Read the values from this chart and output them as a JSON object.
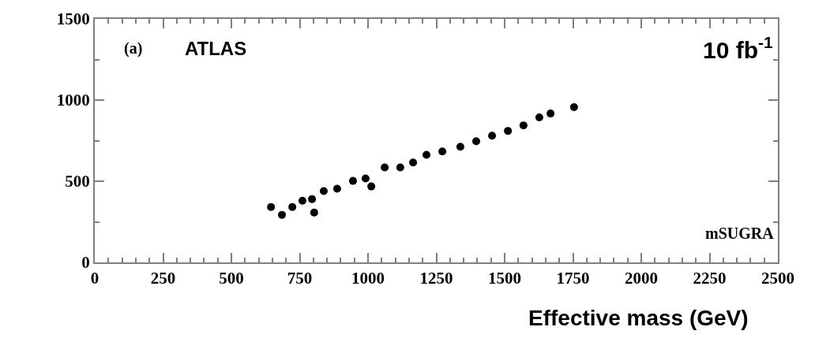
{
  "chart_data": {
    "type": "scatter",
    "xlabel": "Effective mass (GeV)",
    "annotations": [
      "(a)",
      "ATLAS",
      "10 fb$^{-1}$",
      "mSUGRA"
    ],
    "x": [
      645,
      685,
      723,
      760,
      795,
      803,
      838,
      887,
      945,
      991,
      1012,
      1061,
      1118,
      1165,
      1214,
      1272,
      1338,
      1396,
      1454,
      1512,
      1569,
      1627,
      1668,
      1754
    ],
    "series": [
      {
        "color": "#000000",
        "values": [
          341,
          293,
          341,
          380,
          390,
          307,
          439,
          454,
          502,
          517,
          468,
          585,
          585,
          615,
          663,
          683,
          712,
          746,
          780,
          810,
          844,
          893,
          917,
          956
        ]
      }
    ],
    "xlim": [
      0,
      2500
    ],
    "xticks": [
      0,
      250,
      500,
      750,
      1000,
      1250,
      1500,
      1750,
      2000,
      2250,
      2500
    ],
    "ylim": [
      0,
      1500
    ],
    "yticks": [
      0,
      500,
      1000,
      1500
    ],
    "marker": "circle",
    "legend": false
  }
}
